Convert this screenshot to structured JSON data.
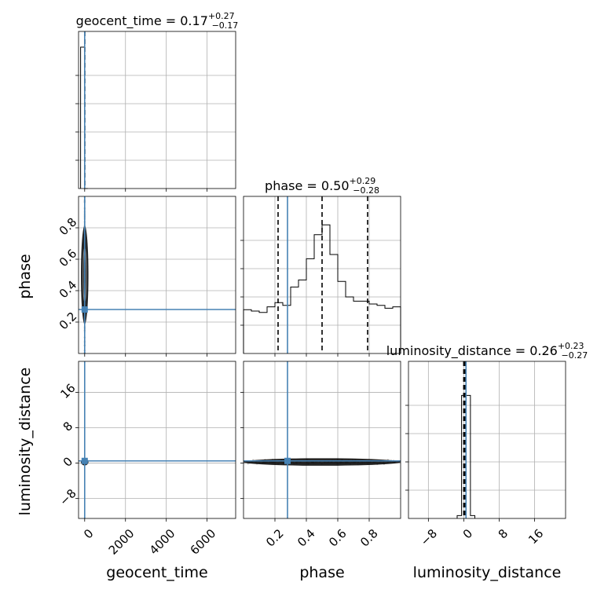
{
  "chart_data": {
    "type": "corner",
    "parameters": [
      "geocent_time",
      "phase",
      "luminosity_distance"
    ],
    "titles": [
      {
        "param": "geocent_time",
        "median": "0.17",
        "plus": "+0.27",
        "minus": "−0.17"
      },
      {
        "param": "phase",
        "median": "0.50",
        "plus": "+0.29",
        "minus": "−0.28"
      },
      {
        "param": "luminosity_distance",
        "median": "0.26",
        "plus": "+0.23",
        "minus": "−0.27"
      }
    ],
    "axes": {
      "geocent_time": {
        "range": [
          -300,
          7400
        ],
        "ticks": [
          0,
          2000,
          4000,
          6000
        ],
        "tick_labels": [
          "0",
          "2000",
          "4000",
          "6000"
        ],
        "grid": [
          0,
          2000,
          4000,
          6000
        ]
      },
      "phase": {
        "range": [
          0.0,
          1.0
        ],
        "ticks": [
          0.2,
          0.4,
          0.6,
          0.8
        ],
        "tick_labels": [
          "0.2",
          "0.4",
          "0.6",
          "0.8"
        ],
        "grid": [
          0.2,
          0.4,
          0.6,
          0.8
        ]
      },
      "luminosity_distance": {
        "range": [
          -12.5,
          23
        ],
        "ticks": [
          -8,
          0,
          8,
          16
        ],
        "tick_labels": [
          "−8",
          "0",
          "8",
          "16"
        ],
        "grid": [
          -8,
          0,
          8,
          16
        ]
      }
    },
    "truths": {
      "geocent_time": 0,
      "phase": 0.28,
      "luminosity_distance": 0.5
    },
    "quantiles": {
      "geocent_time": [
        -0.0,
        0.17,
        0.44
      ],
      "phase": [
        0.22,
        0.5,
        0.79
      ],
      "luminosity_distance": [
        -0.01,
        0.26,
        0.49
      ]
    },
    "histograms": {
      "geocent_time": {
        "edges": [
          -200,
          0,
          150
        ],
        "counts": [
          1.0,
          0.0
        ],
        "max": 1.0
      },
      "phase": {
        "edges": [
          0.0,
          0.05,
          0.1,
          0.15,
          0.2,
          0.25,
          0.3,
          0.35,
          0.4,
          0.45,
          0.5,
          0.55,
          0.6,
          0.65,
          0.7,
          0.75,
          0.8,
          0.85,
          0.9,
          0.95,
          1.0
        ],
        "counts": [
          0.31,
          0.3,
          0.29,
          0.33,
          0.36,
          0.34,
          0.47,
          0.52,
          0.67,
          0.84,
          0.91,
          0.7,
          0.51,
          0.4,
          0.37,
          0.37,
          0.35,
          0.34,
          0.32,
          0.33
        ],
        "max": 1.0
      },
      "luminosity_distance": {
        "edges": [
          -1.5,
          -0.5,
          0.5,
          1.5,
          2.5
        ],
        "counts": [
          0.02,
          0.87,
          0.87,
          0.02
        ],
        "max": 1.0
      }
    },
    "grid": true
  }
}
